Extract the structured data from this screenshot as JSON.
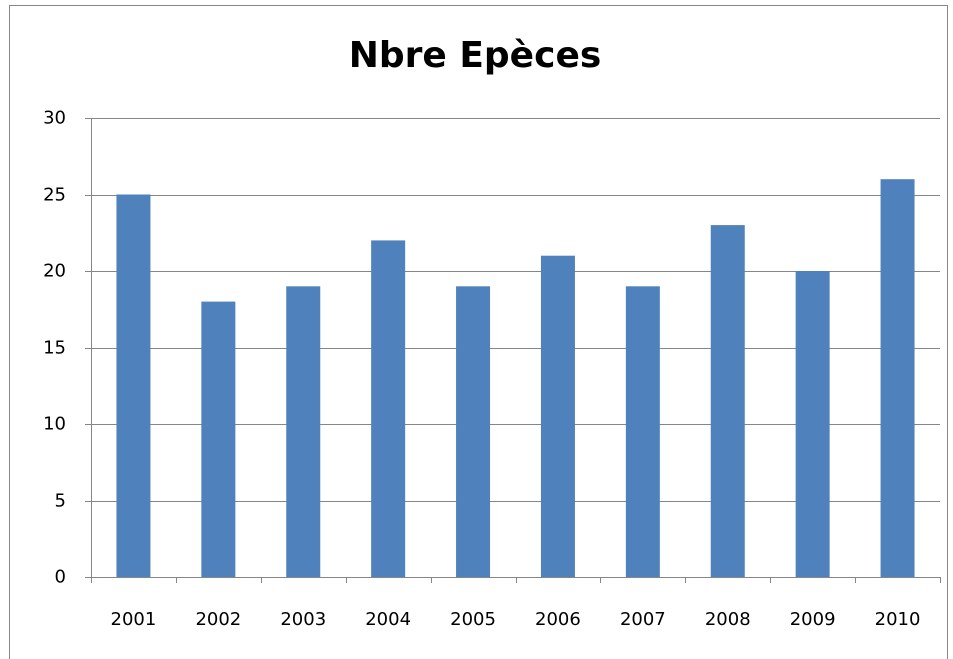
{
  "chart_data": {
    "type": "bar",
    "title": "Nbre Epèces",
    "categories": [
      "2001",
      "2002",
      "2003",
      "2004",
      "2005",
      "2006",
      "2007",
      "2008",
      "2009",
      "2010"
    ],
    "values": [
      25,
      18,
      19,
      22,
      19,
      21,
      19,
      23,
      20,
      26
    ],
    "color": "#4f81bd",
    "ylim": [
      0,
      30
    ],
    "yticks": [
      0,
      5,
      10,
      15,
      20,
      25,
      30
    ],
    "grid": true
  }
}
